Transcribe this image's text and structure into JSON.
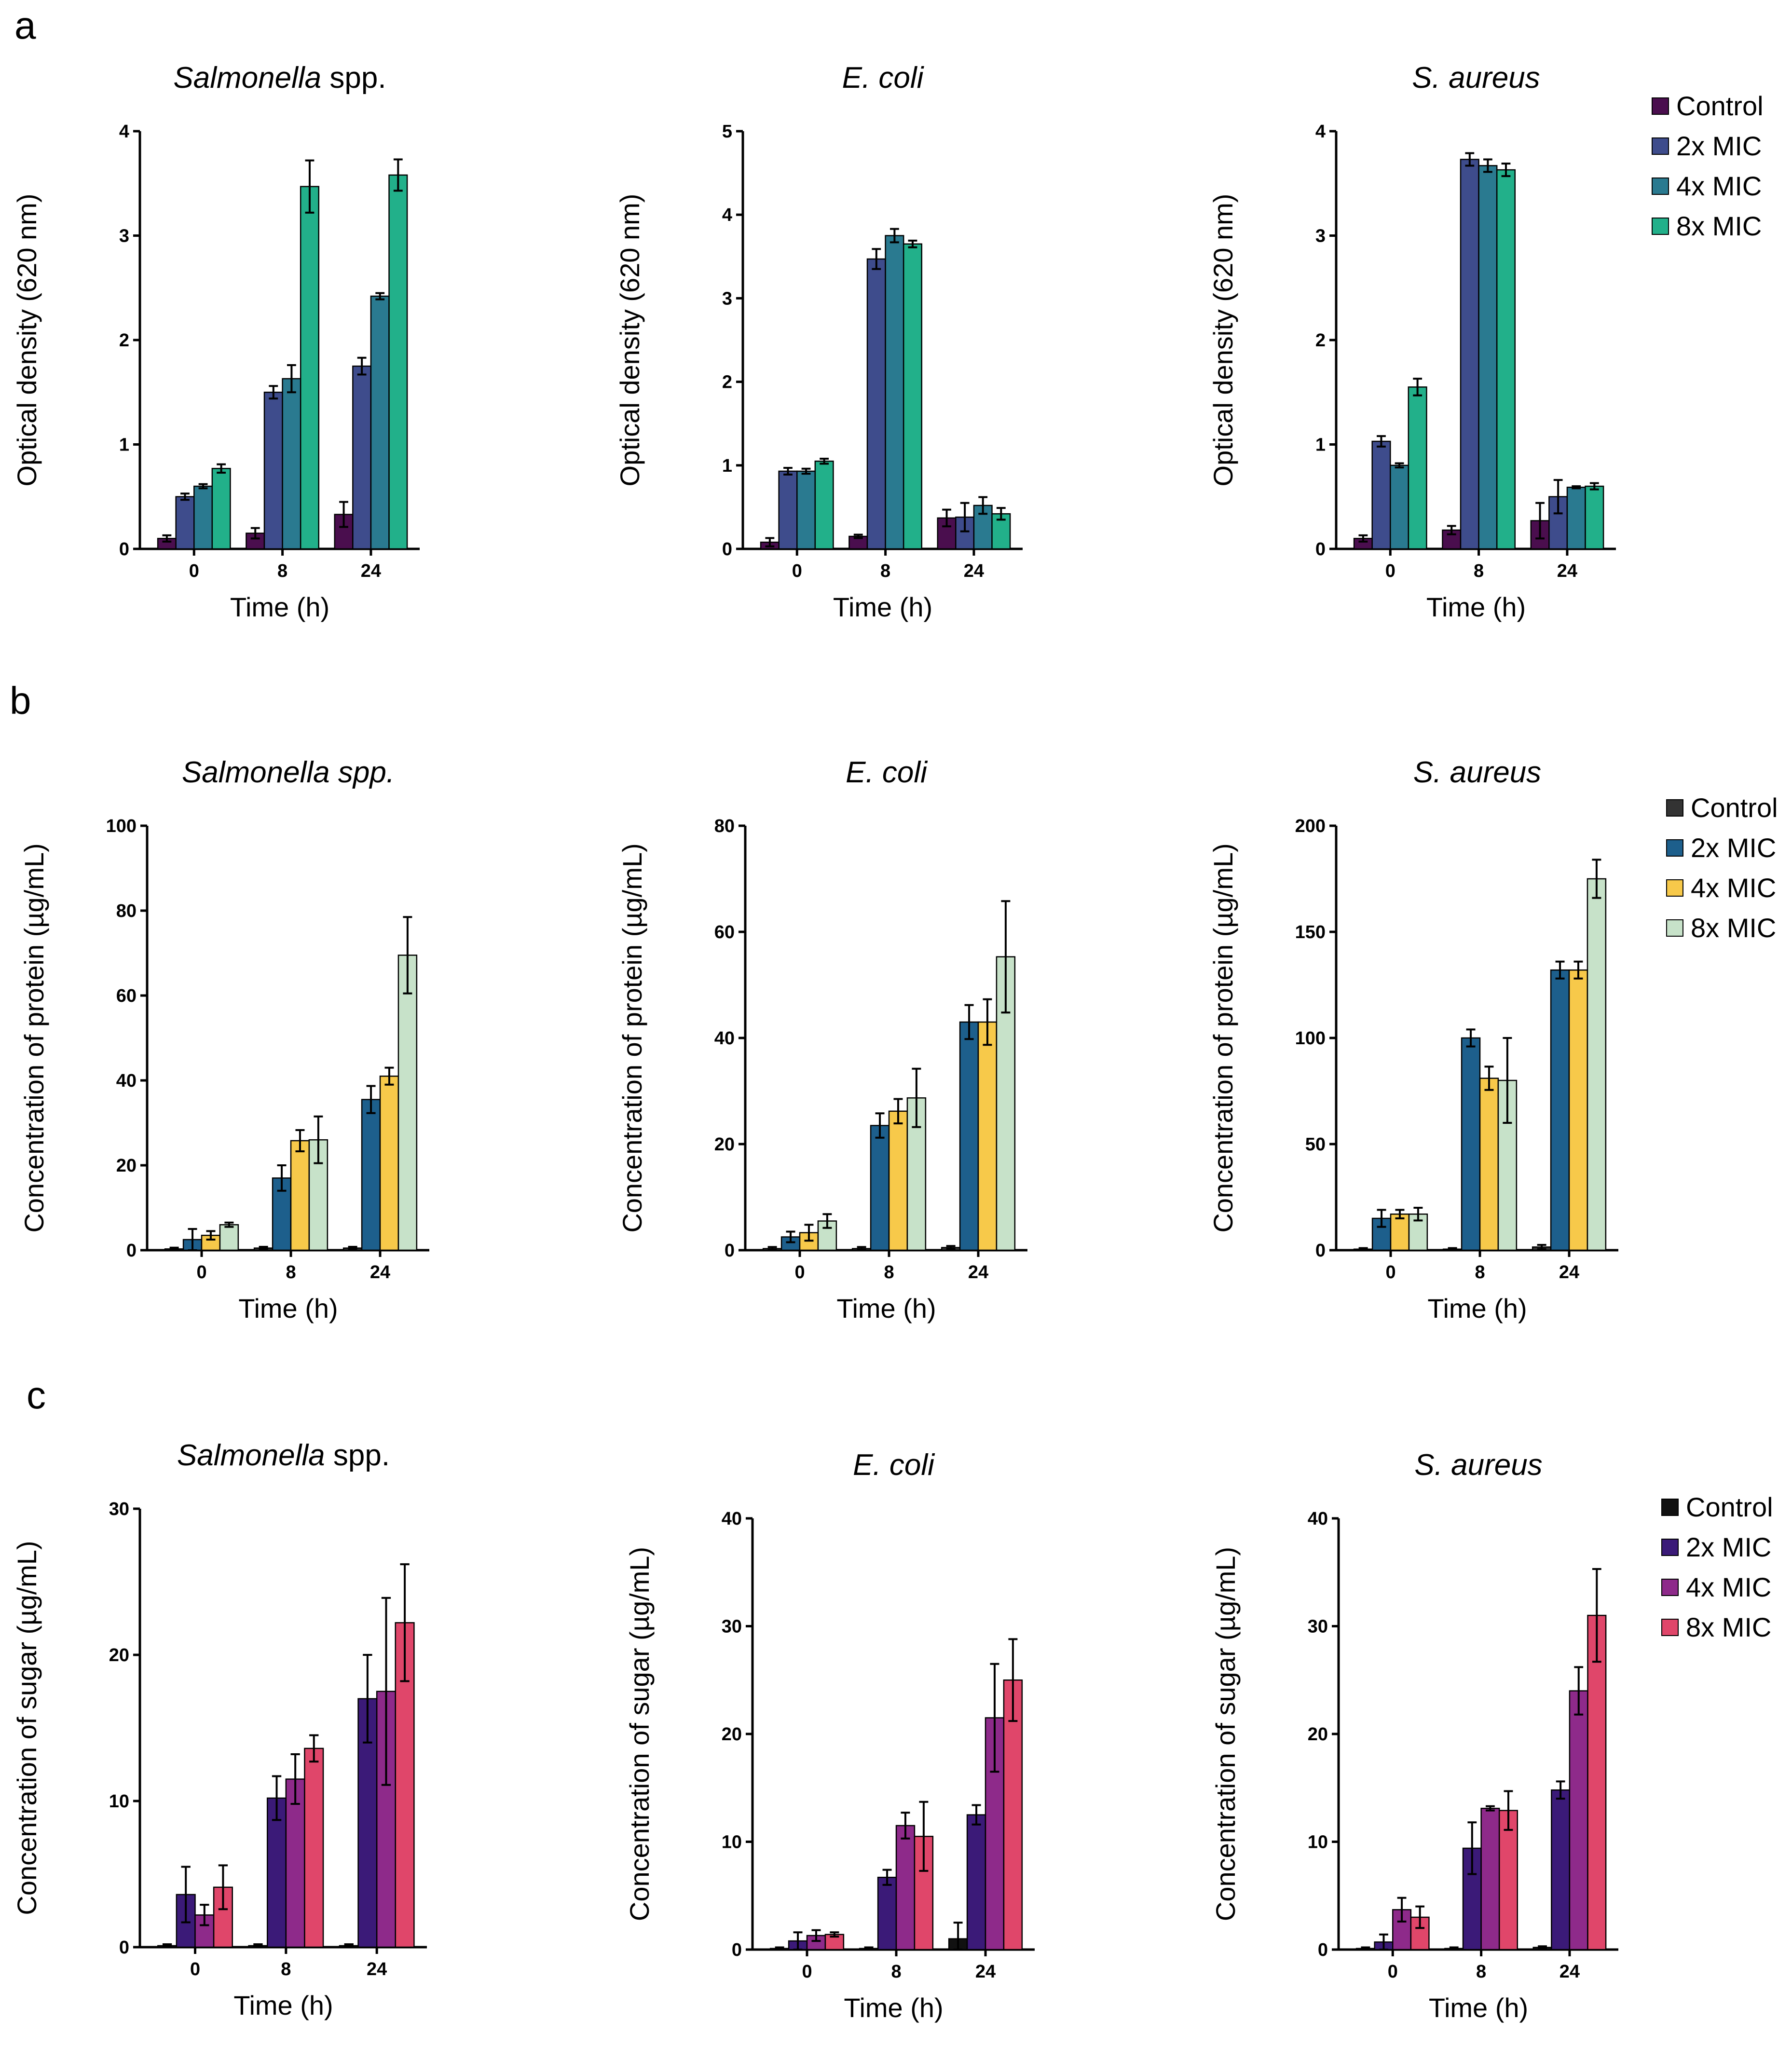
{
  "chart_data": [
    {
      "panel": "a",
      "type": "bar",
      "title": "Salmonella",
      "title_suffix": " spp.",
      "xlabel": "Time (h)",
      "ylabel": "Optical density (620 nm)",
      "categories": [
        "0",
        "8",
        "24"
      ],
      "ylim": [
        0,
        4
      ],
      "yticks": [
        0,
        1,
        2,
        3,
        4
      ],
      "series": [
        {
          "name": "Control",
          "color": "#4a0e4e",
          "values": [
            0.1,
            0.15,
            0.33
          ],
          "errors": [
            0.03,
            0.05,
            0.12
          ]
        },
        {
          "name": "2x MIC",
          "color": "#3e4c8c",
          "values": [
            0.5,
            1.5,
            1.75
          ],
          "errors": [
            0.03,
            0.06,
            0.08
          ]
        },
        {
          "name": "4x MIC",
          "color": "#2a7a90",
          "values": [
            0.6,
            1.63,
            2.42
          ],
          "errors": [
            0.02,
            0.13,
            0.03
          ]
        },
        {
          "name": "8x MIC",
          "color": "#22b08a",
          "values": [
            0.77,
            3.47,
            3.58
          ],
          "errors": [
            0.04,
            0.25,
            0.15
          ]
        }
      ]
    },
    {
      "panel": "",
      "type": "bar",
      "title": "E. coli",
      "title_suffix": "",
      "xlabel": "Time (h)",
      "ylabel": "Optical density (620 nm)",
      "categories": [
        "0",
        "8",
        "24"
      ],
      "ylim": [
        0,
        5
      ],
      "yticks": [
        0,
        1,
        2,
        3,
        4,
        5
      ],
      "series": [
        {
          "name": "Control",
          "color": "#4a0e4e",
          "values": [
            0.08,
            0.15,
            0.37
          ],
          "errors": [
            0.05,
            0.02,
            0.1
          ]
        },
        {
          "name": "2x MIC",
          "color": "#3e4c8c",
          "values": [
            0.93,
            3.47,
            0.38
          ],
          "errors": [
            0.04,
            0.12,
            0.17
          ]
        },
        {
          "name": "4x MIC",
          "color": "#2a7a90",
          "values": [
            0.93,
            3.75,
            0.52
          ],
          "errors": [
            0.03,
            0.08,
            0.1
          ]
        },
        {
          "name": "8x MIC",
          "color": "#22b08a",
          "values": [
            1.05,
            3.65,
            0.42
          ],
          "errors": [
            0.03,
            0.04,
            0.07
          ]
        }
      ]
    },
    {
      "panel": "",
      "type": "bar",
      "title": "S. aureus",
      "title_suffix": "",
      "xlabel": "Time (h)",
      "ylabel": "Optical density (620 nm)",
      "categories": [
        "0",
        "8",
        "24"
      ],
      "ylim": [
        0,
        4
      ],
      "yticks": [
        0,
        1,
        2,
        3,
        4
      ],
      "legend": "top-right",
      "series": [
        {
          "name": "Control",
          "color": "#4a0e4e",
          "values": [
            0.1,
            0.18,
            0.27
          ],
          "errors": [
            0.03,
            0.04,
            0.17
          ]
        },
        {
          "name": "2x MIC",
          "color": "#3e4c8c",
          "values": [
            1.03,
            3.73,
            0.5
          ],
          "errors": [
            0.05,
            0.06,
            0.16
          ]
        },
        {
          "name": "4x MIC",
          "color": "#2a7a90",
          "values": [
            0.8,
            3.67,
            0.59
          ],
          "errors": [
            0.02,
            0.06,
            0.01
          ]
        },
        {
          "name": "8x MIC",
          "color": "#22b08a",
          "values": [
            1.55,
            3.63,
            0.6
          ],
          "errors": [
            0.08,
            0.06,
            0.03
          ]
        }
      ]
    },
    {
      "panel": "b",
      "type": "bar",
      "title": "Salmonella spp.",
      "title_suffix": "",
      "xlabel": "Time (h)",
      "ylabel": "Concentration of protein (µg/mL)",
      "categories": [
        "0",
        "8",
        "24"
      ],
      "ylim": [
        0,
        100
      ],
      "yticks": [
        0,
        20,
        40,
        60,
        80,
        100
      ],
      "series": [
        {
          "name": "Control",
          "color": "#333333",
          "values": [
            0.3,
            0.5,
            0.5
          ],
          "errors": [
            0.3,
            0.3,
            0.3
          ]
        },
        {
          "name": "2x MIC",
          "color": "#1d5f8c",
          "values": [
            2.5,
            17,
            35.5
          ],
          "errors": [
            2.5,
            3,
            3.2
          ]
        },
        {
          "name": "4x MIC",
          "color": "#f7c94a",
          "values": [
            3.5,
            25.8,
            41
          ],
          "errors": [
            1,
            2.5,
            2
          ]
        },
        {
          "name": "8x MIC",
          "color": "#c7e2c9",
          "values": [
            6,
            26,
            69.5
          ],
          "errors": [
            0.5,
            5.5,
            9
          ]
        }
      ]
    },
    {
      "panel": "",
      "type": "bar",
      "title": "E. coli",
      "title_suffix": "",
      "xlabel": "Time (h)",
      "ylabel": "Concentration of protein (µg/mL)",
      "categories": [
        "0",
        "8",
        "24"
      ],
      "ylim": [
        0,
        80
      ],
      "yticks": [
        0,
        20,
        40,
        60,
        80
      ],
      "series": [
        {
          "name": "Control",
          "color": "#333333",
          "values": [
            0.3,
            0.3,
            0.5
          ],
          "errors": [
            0.3,
            0.3,
            0.3
          ]
        },
        {
          "name": "2x MIC",
          "color": "#1d5f8c",
          "values": [
            2.5,
            23.5,
            43
          ],
          "errors": [
            1,
            2.3,
            3.2
          ]
        },
        {
          "name": "4x MIC",
          "color": "#f7c94a",
          "values": [
            3.3,
            26.2,
            43
          ],
          "errors": [
            1.5,
            2.3,
            4.3
          ]
        },
        {
          "name": "8x MIC",
          "color": "#c7e2c9",
          "values": [
            5.5,
            28.7,
            55.3
          ],
          "errors": [
            1.3,
            5.5,
            10.5
          ]
        }
      ]
    },
    {
      "panel": "",
      "type": "bar",
      "title": "S. aureus",
      "title_suffix": "",
      "xlabel": "Time (h)",
      "ylabel": "Concentration of protein (µg/mL)",
      "categories": [
        "0",
        "8",
        "24"
      ],
      "ylim": [
        0,
        200
      ],
      "yticks": [
        0,
        50,
        100,
        150,
        200
      ],
      "legend": "top-right",
      "series": [
        {
          "name": "Control",
          "color": "#333333",
          "values": [
            0.5,
            0.5,
            1.5
          ],
          "errors": [
            0.5,
            0.5,
            1
          ]
        },
        {
          "name": "2x MIC",
          "color": "#1d5f8c",
          "values": [
            15,
            100,
            132
          ],
          "errors": [
            4,
            4,
            4
          ]
        },
        {
          "name": "4x MIC",
          "color": "#f7c94a",
          "values": [
            17,
            81,
            132
          ],
          "errors": [
            2,
            5.5,
            4
          ]
        },
        {
          "name": "8x MIC",
          "color": "#c7e2c9",
          "values": [
            17,
            80,
            175
          ],
          "errors": [
            3,
            20,
            9
          ]
        }
      ]
    },
    {
      "panel": "c",
      "type": "bar",
      "title": "Salmonella",
      "title_suffix": " spp.",
      "xlabel": "Time (h)",
      "ylabel": "Concentration of sugar (µg/mL)",
      "categories": [
        "0",
        "8",
        "24"
      ],
      "ylim": [
        0,
        30
      ],
      "yticks": [
        0,
        10,
        20,
        30
      ],
      "series": [
        {
          "name": "Control",
          "color": "#111111",
          "values": [
            0.1,
            0.1,
            0.1
          ],
          "errors": [
            0.1,
            0.1,
            0.1
          ]
        },
        {
          "name": "2x MIC",
          "color": "#3b1a78",
          "values": [
            3.6,
            10.2,
            17
          ],
          "errors": [
            1.9,
            1.5,
            3
          ]
        },
        {
          "name": "4x MIC",
          "color": "#8e2a8a",
          "values": [
            2.2,
            11.5,
            17.5
          ],
          "errors": [
            0.7,
            1.7,
            6.4
          ]
        },
        {
          "name": "8x MIC",
          "color": "#e0466a",
          "values": [
            4.1,
            13.6,
            22.2
          ],
          "errors": [
            1.5,
            0.9,
            4
          ]
        }
      ]
    },
    {
      "panel": "",
      "type": "bar",
      "title": "E. coli",
      "title_suffix": "",
      "xlabel": "Time (h)",
      "ylabel": "Concentration of sugar (µg/mL)",
      "categories": [
        "0",
        "8",
        "24"
      ],
      "ylim": [
        0,
        40
      ],
      "yticks": [
        0,
        10,
        20,
        30,
        40
      ],
      "series": [
        {
          "name": "Control",
          "color": "#111111",
          "values": [
            0.1,
            0.1,
            1
          ],
          "errors": [
            0.1,
            0.1,
            1.5
          ]
        },
        {
          "name": "2x MIC",
          "color": "#3b1a78",
          "values": [
            0.8,
            6.7,
            12.5
          ],
          "errors": [
            0.8,
            0.7,
            0.9
          ]
        },
        {
          "name": "4x MIC",
          "color": "#8e2a8a",
          "values": [
            1.3,
            11.5,
            21.5
          ],
          "errors": [
            0.5,
            1.2,
            5
          ]
        },
        {
          "name": "8x MIC",
          "color": "#e0466a",
          "values": [
            1.4,
            10.5,
            25
          ],
          "errors": [
            0.2,
            3.2,
            3.8
          ]
        }
      ]
    },
    {
      "panel": "",
      "type": "bar",
      "title": "S. aureus",
      "title_suffix": "",
      "xlabel": "Time (h)",
      "ylabel": "Concentration of sugar (µg/mL)",
      "categories": [
        "0",
        "8",
        "24"
      ],
      "ylim": [
        0,
        40
      ],
      "yticks": [
        0,
        10,
        20,
        30,
        40
      ],
      "legend": "top-right",
      "series": [
        {
          "name": "Control",
          "color": "#111111",
          "values": [
            0.1,
            0.1,
            0.2
          ],
          "errors": [
            0.1,
            0.1,
            0.1
          ]
        },
        {
          "name": "2x MIC",
          "color": "#3b1a78",
          "values": [
            0.7,
            9.4,
            14.8
          ],
          "errors": [
            0.7,
            2.4,
            0.8
          ]
        },
        {
          "name": "4x MIC",
          "color": "#8e2a8a",
          "values": [
            3.7,
            13.1,
            24
          ],
          "errors": [
            1.1,
            0.2,
            2.2
          ]
        },
        {
          "name": "8x MIC",
          "color": "#e0466a",
          "values": [
            3,
            12.9,
            31
          ],
          "errors": [
            1,
            1.8,
            4.3
          ]
        }
      ]
    }
  ]
}
